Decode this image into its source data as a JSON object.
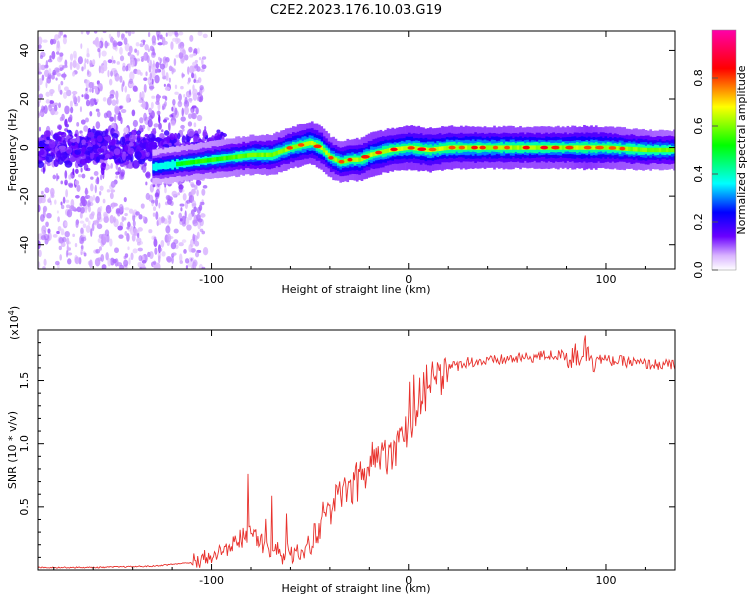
{
  "title": "C2E2.2023.176.10.03.G19",
  "chart_data": [
    {
      "type": "heatmap",
      "xlabel": "Height of straight line (km)",
      "ylabel": "Frequency (Hz)",
      "xlim": [
        -188,
        135
      ],
      "ylim": [
        -50,
        48
      ],
      "xticks": [
        -100,
        0,
        100
      ],
      "xtick_labels": [
        "-100",
        "0",
        "100"
      ],
      "yticks": [
        -40,
        -20,
        0,
        20,
        40
      ],
      "ytick_labels": [
        "-40",
        "-20",
        "0",
        "20",
        "40"
      ],
      "grid": false,
      "colorbar": {
        "label": "Normalized spectral amplitude",
        "range": [
          0,
          1
        ],
        "ticks": [
          0,
          0.2,
          0.4,
          0.6,
          0.8
        ],
        "tick_labels": [
          "0.0",
          "0.2",
          "0.4",
          "0.6",
          "0.8"
        ],
        "colors": [
          "#ffffff",
          "#d9b3ff",
          "#6a00ff",
          "#0000ff",
          "#00ffff",
          "#00ff00",
          "#ffff00",
          "#ff0000",
          "#ff00aa"
        ]
      },
      "ridge": {
        "description": "Frequency of maximum spectral amplitude versus height",
        "x": [
          -130,
          -120,
          -110,
          -100,
          -90,
          -80,
          -70,
          -60,
          -50,
          -45,
          -40,
          -35,
          -30,
          -25,
          -20,
          -10,
          0,
          10,
          20,
          40,
          60,
          80,
          90,
          100,
          120,
          135
        ],
        "y": [
          -8,
          -7,
          -6,
          -5,
          -4,
          -3,
          -3,
          0,
          2,
          0,
          -4,
          -6,
          -5,
          -5,
          -3,
          -1,
          0,
          -1,
          0,
          0,
          0,
          0,
          0,
          0,
          -1,
          -1
        ],
        "amplitude": [
          0.15,
          0.2,
          0.3,
          0.35,
          0.45,
          0.55,
          0.6,
          0.7,
          0.8,
          0.75,
          0.7,
          0.65,
          0.7,
          0.75,
          0.8,
          0.8,
          0.85,
          0.85,
          0.8,
          0.75,
          0.7,
          0.7,
          0.85,
          0.7,
          0.6,
          0.5
        ]
      }
    },
    {
      "type": "line",
      "xlabel": "Height of straight line (km)",
      "ylabel": "SNR (10 * v/v)",
      "scale_label": "(x10",
      "scale_exponent": "4",
      "scale_suffix": ")",
      "xlim": [
        -188,
        135
      ],
      "ylim": [
        0,
        1.9
      ],
      "xticks": [
        -100,
        0,
        100
      ],
      "xtick_labels": [
        "-100",
        "0",
        "100"
      ],
      "yticks": [
        0.5,
        1.0,
        1.5
      ],
      "ytick_labels": [
        "0.5",
        "1.0",
        "1.5"
      ],
      "grid": false,
      "series": [
        {
          "color": "#e8322d",
          "x": [
            -188,
            -160,
            -130,
            -110,
            -100,
            -95,
            -90,
            -85,
            -80,
            -75,
            -70,
            -65,
            -60,
            -55,
            -50,
            -45,
            -42,
            -40,
            -38,
            -35,
            -30,
            -25,
            -20,
            -15,
            -10,
            -5,
            0,
            5,
            10,
            15,
            20,
            25,
            30,
            40,
            50,
            60,
            70,
            80,
            85,
            90,
            95,
            100,
            110,
            120,
            135
          ],
          "y": [
            0.02,
            0.02,
            0.03,
            0.06,
            0.1,
            0.15,
            0.2,
            0.25,
            0.3,
            0.25,
            0.15,
            0.12,
            0.15,
            0.12,
            0.2,
            0.35,
            0.5,
            0.45,
            0.55,
            0.6,
            0.65,
            0.75,
            0.85,
            0.9,
            0.95,
            1.05,
            1.15,
            1.3,
            1.45,
            1.55,
            1.6,
            1.62,
            1.65,
            1.65,
            1.67,
            1.68,
            1.7,
            1.7,
            1.72,
            1.75,
            1.68,
            1.66,
            1.65,
            1.63,
            1.62
          ]
        }
      ]
    }
  ]
}
